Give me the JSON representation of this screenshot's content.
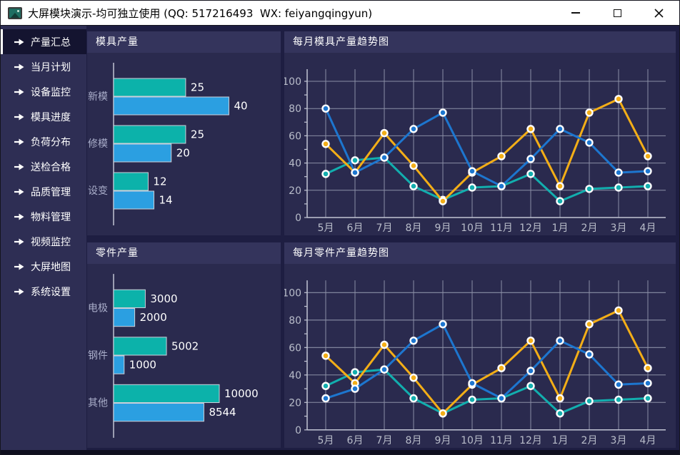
{
  "window": {
    "title": "大屏模块演示-均可独立使用 (QQ: 517216493  WX: feiyangqingyun)",
    "icons": {
      "app_icon": "framed-picture",
      "minimize": "–",
      "maximize": "□",
      "close": "✕",
      "sidebar_arrow": "➜"
    }
  },
  "sidebar": {
    "items": [
      {
        "label": "产量汇总",
        "active": true
      },
      {
        "label": "当月计划",
        "active": false
      },
      {
        "label": "设备监控",
        "active": false
      },
      {
        "label": "模具进度",
        "active": false
      },
      {
        "label": "负荷分布",
        "active": false
      },
      {
        "label": "送检合格",
        "active": false
      },
      {
        "label": "品质管理",
        "active": false
      },
      {
        "label": "物料管理",
        "active": false
      },
      {
        "label": "视频监控",
        "active": false
      },
      {
        "label": "大屏地图",
        "active": false
      },
      {
        "label": "系统设置",
        "active": false
      }
    ]
  },
  "colors": {
    "teal": "#0cb2aa",
    "bar_blue": "#2b9fe1",
    "line_blue": "#1d76cf",
    "line_teal": "#12aeae",
    "yellow": "#f3ae17",
    "panel_bg": "#2a2a4e",
    "panel_header_bg": "#34345c",
    "sidebar_bg": "#2e2e54",
    "sidebar_active_bg": "#141430",
    "app_bg": "#1e1e42",
    "grid_line": "#8b8fa6",
    "axis_line": "#c2c5d4",
    "axis_text": "#b9bdca"
  },
  "chart_data": [
    {
      "type": "bar",
      "orientation": "horizontal",
      "title": "模具产量",
      "categories": [
        "新模",
        "修模",
        "设变"
      ],
      "series": [
        {
          "name": "teal",
          "color": "#0cb2aa",
          "values": [
            25,
            25,
            12
          ]
        },
        {
          "name": "blue",
          "color": "#2b9fe1",
          "values": [
            40,
            20,
            14
          ]
        }
      ],
      "xmax": 55,
      "value_labels": true,
      "grid": false,
      "legend": null
    },
    {
      "type": "line",
      "title": "每月模具产量趋势图",
      "x": [
        "5月",
        "6月",
        "7月",
        "8月",
        "9月",
        "10月",
        "11月",
        "12月",
        "1月",
        "2月",
        "3月",
        "4月"
      ],
      "ylim": [
        0,
        100
      ],
      "ytick": 20,
      "grid": true,
      "legend": null,
      "series": [
        {
          "name": "teal",
          "color": "#12aeae",
          "values": [
            32,
            42,
            44,
            23,
            13,
            22,
            23,
            32,
            12,
            21,
            22,
            23
          ]
        },
        {
          "name": "yellow",
          "color": "#f3ae17",
          "values": [
            54,
            33,
            62,
            38,
            12,
            33,
            45,
            65,
            23,
            77,
            87,
            45
          ]
        },
        {
          "name": "blue",
          "color": "#1d76cf",
          "values": [
            80,
            33,
            44,
            65,
            77,
            34,
            23,
            43,
            65,
            55,
            33,
            34
          ]
        }
      ]
    },
    {
      "type": "bar",
      "orientation": "horizontal",
      "title": "零件产量",
      "categories": [
        "电极",
        "钢件",
        "其他"
      ],
      "series": [
        {
          "name": "teal",
          "color": "#0cb2aa",
          "values": [
            3000,
            5002,
            10000
          ]
        },
        {
          "name": "blue",
          "color": "#2b9fe1",
          "values": [
            2000,
            1000,
            8544
          ]
        }
      ],
      "xmax": 15000,
      "value_labels": true,
      "grid": false,
      "legend": null
    },
    {
      "type": "line",
      "title": "每月零件产量趋势图",
      "x": [
        "5月",
        "6月",
        "7月",
        "8月",
        "9月",
        "10月",
        "11月",
        "12月",
        "1月",
        "2月",
        "3月",
        "4月"
      ],
      "ylim": [
        0,
        100
      ],
      "ytick": 20,
      "grid": true,
      "legend": null,
      "series": [
        {
          "name": "teal",
          "color": "#12aeae",
          "values": [
            32,
            42,
            44,
            23,
            12,
            22,
            23,
            32,
            12,
            21,
            22,
            23
          ]
        },
        {
          "name": "yellow",
          "color": "#f3ae17",
          "values": [
            54,
            34,
            62,
            38,
            12,
            33,
            45,
            65,
            23,
            77,
            87,
            45
          ]
        },
        {
          "name": "blue",
          "color": "#1d76cf",
          "values": [
            23,
            30,
            44,
            65,
            77,
            34,
            23,
            43,
            65,
            55,
            33,
            34
          ]
        }
      ]
    }
  ]
}
